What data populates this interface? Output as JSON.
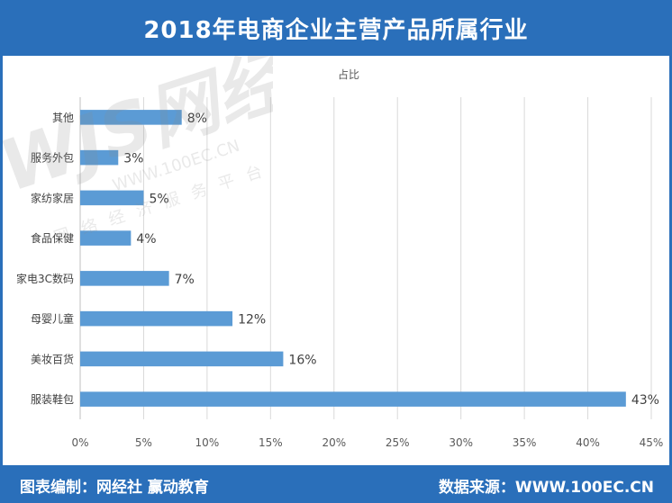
{
  "header": {
    "title": "2018年电商企业主营产品所属行业"
  },
  "footer": {
    "left": "图表编制：网经社  赢动教育",
    "right": "数据来源：WWW.100EC.CN"
  },
  "watermark": {
    "brand": "WJS网经社",
    "url": "WWW.100EC.CN",
    "slogan": "网络经济服务平台"
  },
  "colors": {
    "bar": "#5b9bd5",
    "frame": "#2a6fba",
    "grid": "#d9d9d9"
  },
  "chart_data": {
    "type": "bar",
    "orientation": "horizontal",
    "title": "占比",
    "categories": [
      "其他",
      "服务外包",
      "家纺家居",
      "食品保健",
      "家电3C数码",
      "母婴儿童",
      "美妆百货",
      "服装鞋包"
    ],
    "series": [
      {
        "values": [
          8,
          3,
          5,
          4,
          7,
          12,
          16,
          43
        ]
      }
    ],
    "data_labels": [
      "8%",
      "3%",
      "5%",
      "4%",
      "7%",
      "12%",
      "16%",
      "43%"
    ],
    "xlim": [
      0,
      45
    ],
    "x_ticks": [
      0,
      5,
      10,
      15,
      20,
      25,
      30,
      35,
      40,
      45
    ],
    "x_tick_labels": [
      "0%",
      "5%",
      "10%",
      "15%",
      "20%",
      "25%",
      "30%",
      "35%",
      "40%",
      "45%"
    ],
    "grid": true,
    "legend": "none"
  }
}
